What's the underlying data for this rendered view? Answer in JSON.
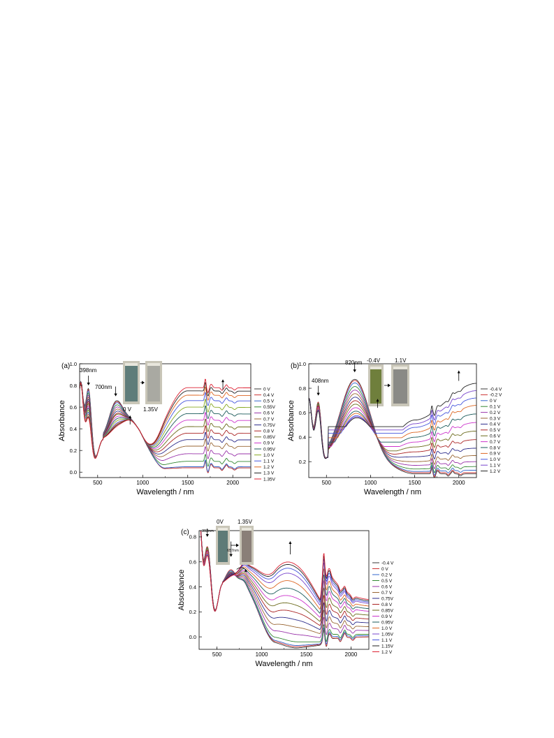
{
  "chart_data": [
    {
      "type": "line",
      "panel_label": "(a)",
      "xlabel": "Wavelength / nm",
      "ylabel": "Absorbance",
      "xlim": [
        300,
        2200
      ],
      "ylim": [
        -0.05,
        1.0
      ],
      "xticks": [
        500,
        1000,
        1500,
        2000
      ],
      "xtick_labels": [
        "500",
        "1000",
        "1500",
        "2000"
      ],
      "yticks": [
        0.0,
        0.2,
        0.4,
        0.6,
        0.8,
        1.0
      ],
      "ytick_labels": [
        "0.0",
        "0.2",
        "0.4",
        "0.6",
        "0.8",
        "1.0"
      ],
      "legend_position": "right",
      "annotations": [
        "398nm",
        "700nm"
      ],
      "photo_labels": [
        "0 V",
        "1.35V"
      ],
      "series": [
        {
          "name": "0  V",
          "color": "#3a3a3a",
          "a398": 0.76,
          "a700": 0.62,
          "a860": 0.47,
          "nir": 0.02,
          "nir_end": 0.0
        },
        {
          "name": "0.4  V",
          "color": "#cc3333",
          "a398": 0.75,
          "a700": 0.61,
          "a860": 0.47,
          "nir": 0.02,
          "nir_end": 0.01
        },
        {
          "name": "0.5  V",
          "color": "#3366cc",
          "a398": 0.74,
          "a700": 0.6,
          "a860": 0.47,
          "nir": 0.03,
          "nir_end": 0.02
        },
        {
          "name": "0.55V",
          "color": "#338833",
          "a398": 0.72,
          "a700": 0.58,
          "a860": 0.47,
          "nir": 0.08,
          "nir_end": 0.06
        },
        {
          "name": "0.6  V",
          "color": "#9933aa",
          "a398": 0.7,
          "a700": 0.56,
          "a860": 0.47,
          "nir": 0.15,
          "nir_end": 0.13
        },
        {
          "name": "0.7  V",
          "color": "#996633",
          "a398": 0.68,
          "a700": 0.54,
          "a860": 0.47,
          "nir": 0.22,
          "nir_end": 0.18
        },
        {
          "name": "0.75V",
          "color": "#2b2b8a",
          "a398": 0.66,
          "a700": 0.52,
          "a860": 0.48,
          "nir": 0.28,
          "nir_end": 0.24
        },
        {
          "name": "0.8  V",
          "color": "#aa2222",
          "a398": 0.64,
          "a700": 0.5,
          "a860": 0.48,
          "nir": 0.34,
          "nir_end": 0.3
        },
        {
          "name": "0.85V",
          "color": "#6a6a1a",
          "a398": 0.62,
          "a700": 0.49,
          "a860": 0.48,
          "nir": 0.4,
          "nir_end": 0.34
        },
        {
          "name": "0.9  V",
          "color": "#cc33cc",
          "a398": 0.6,
          "a700": 0.47,
          "a860": 0.48,
          "nir": 0.46,
          "nir_end": 0.4
        },
        {
          "name": "0.95V",
          "color": "#1a5a5a",
          "a398": 0.58,
          "a700": 0.45,
          "a860": 0.49,
          "nir": 0.52,
          "nir_end": 0.46
        },
        {
          "name": "1.0  V",
          "color": "#88aa22",
          "a398": 0.56,
          "a700": 0.43,
          "a860": 0.49,
          "nir": 0.58,
          "nir_end": 0.52
        },
        {
          "name": "1.1  V",
          "color": "#4455dd",
          "a398": 0.54,
          "a700": 0.41,
          "a860": 0.49,
          "nir": 0.64,
          "nir_end": 0.58
        },
        {
          "name": "1.2  V",
          "color": "#dd6622",
          "a398": 0.52,
          "a700": 0.4,
          "a860": 0.49,
          "nir": 0.69,
          "nir_end": 0.64
        },
        {
          "name": "1.3  V",
          "color": "#222222",
          "a398": 0.5,
          "a700": 0.39,
          "a860": 0.5,
          "nir": 0.73,
          "nir_end": 0.68
        },
        {
          "name": "1.35V",
          "color": "#dd2233",
          "a398": 0.49,
          "a700": 0.38,
          "a860": 0.5,
          "nir": 0.76,
          "nir_end": 0.72
        }
      ]
    },
    {
      "type": "line",
      "panel_label": "(b)",
      "xlabel": "Wavelength / nm",
      "ylabel": "Absorbance",
      "xlim": [
        300,
        2200
      ],
      "ylim": [
        0.07,
        1.0
      ],
      "xticks": [
        500,
        1000,
        1500,
        2000
      ],
      "xtick_labels": [
        "500",
        "1000",
        "1500",
        "2000"
      ],
      "yticks": [
        0.2,
        0.4,
        0.6,
        0.8,
        1.0
      ],
      "ytick_labels": [
        "0.2",
        "0.4",
        "0.6",
        "0.8",
        "1.0"
      ],
      "legend_position": "right",
      "annotations": [
        "408nm",
        "820nm"
      ],
      "photo_labels": [
        "-0.4V",
        "1.1V"
      ],
      "series": [
        {
          "name": "-0.4 V",
          "color": "#3a3a3a",
          "a408": 0.68,
          "a820": 0.87,
          "nir": 0.1,
          "nir_end": 0.1
        },
        {
          "name": "-0.2 V",
          "color": "#cc3333",
          "a408": 0.68,
          "a820": 0.86,
          "nir": 0.11,
          "nir_end": 0.11
        },
        {
          "name": "0  V",
          "color": "#3366cc",
          "a408": 0.67,
          "a820": 0.84,
          "nir": 0.12,
          "nir_end": 0.13
        },
        {
          "name": "0.1 V",
          "color": "#338833",
          "a408": 0.67,
          "a820": 0.81,
          "nir": 0.14,
          "nir_end": 0.16
        },
        {
          "name": "0.2 V",
          "color": "#9933aa",
          "a408": 0.66,
          "a820": 0.78,
          "nir": 0.17,
          "nir_end": 0.2
        },
        {
          "name": "0.3 V",
          "color": "#996633",
          "a408": 0.66,
          "a820": 0.75,
          "nir": 0.2,
          "nir_end": 0.25
        },
        {
          "name": "0.4 V",
          "color": "#2b2b8a",
          "a408": 0.65,
          "a820": 0.72,
          "nir": 0.24,
          "nir_end": 0.31
        },
        {
          "name": "0.5 V",
          "color": "#aa2222",
          "a408": 0.65,
          "a820": 0.69,
          "nir": 0.28,
          "nir_end": 0.38
        },
        {
          "name": "0.6 V",
          "color": "#6a6a1a",
          "a408": 0.64,
          "a820": 0.66,
          "nir": 0.32,
          "nir_end": 0.45
        },
        {
          "name": "0.7 V",
          "color": "#cc33cc",
          "a408": 0.64,
          "a820": 0.63,
          "nir": 0.36,
          "nir_end": 0.52
        },
        {
          "name": "0.8 V",
          "color": "#1a5a5a",
          "a408": 0.63,
          "a820": 0.6,
          "nir": 0.4,
          "nir_end": 0.59
        },
        {
          "name": "0.9 V",
          "color": "#dd6622",
          "a408": 0.63,
          "a820": 0.58,
          "nir": 0.44,
          "nir_end": 0.66
        },
        {
          "name": "1.0 V",
          "color": "#4455dd",
          "a408": 0.62,
          "a820": 0.56,
          "nir": 0.48,
          "nir_end": 0.72
        },
        {
          "name": "1.1 V",
          "color": "#7744cc",
          "a408": 0.62,
          "a820": 0.55,
          "nir": 0.51,
          "nir_end": 0.78
        },
        {
          "name": "1.2 V",
          "color": "#222222",
          "a408": 0.61,
          "a820": 0.54,
          "nir": 0.54,
          "nir_end": 0.84
        }
      ]
    },
    {
      "type": "line",
      "panel_label": "(c)",
      "xlabel": "Wavelength / nm",
      "ylabel": "Absorbance",
      "xlim": [
        300,
        2200
      ],
      "ylim": [
        -0.1,
        0.85
      ],
      "xticks": [
        500,
        1000,
        1500,
        2000
      ],
      "xtick_labels": [
        "500",
        "1000",
        "1500",
        "2000"
      ],
      "yticks": [
        0.0,
        0.2,
        0.4,
        0.6,
        0.8
      ],
      "ytick_labels": [
        "0.0",
        "0.2",
        "0.4",
        "0.6",
        "0.8"
      ],
      "legend_position": "right",
      "annotations": [
        "392nm",
        "657nm"
      ],
      "photo_labels": [
        "0V",
        "1.35V"
      ],
      "series": [
        {
          "name": "-0.4  V",
          "color": "#3a3a3a",
          "a392": 0.72,
          "a657": 0.52,
          "nir": -0.05,
          "nir_end": 0.0
        },
        {
          "name": "0  V",
          "color": "#cc3333",
          "a392": 0.72,
          "a657": 0.52,
          "nir": -0.04,
          "nir_end": 0.0
        },
        {
          "name": "0.2  V",
          "color": "#3366cc",
          "a392": 0.71,
          "a657": 0.51,
          "nir": -0.03,
          "nir_end": 0.01
        },
        {
          "name": "0.5  V",
          "color": "#338833",
          "a392": 0.71,
          "a657": 0.5,
          "nir": 0.0,
          "nir_end": 0.02
        },
        {
          "name": "0.6  V",
          "color": "#9933aa",
          "a392": 0.7,
          "a657": 0.49,
          "nir": 0.06,
          "nir_end": 0.05
        },
        {
          "name": "0.7  V",
          "color": "#996633",
          "a392": 0.7,
          "a657": 0.48,
          "nir": 0.12,
          "nir_end": 0.08
        },
        {
          "name": "0.75V",
          "color": "#2b2b8a",
          "a392": 0.69,
          "a657": 0.47,
          "nir": 0.18,
          "nir_end": 0.11
        },
        {
          "name": "0.8  V",
          "color": "#aa2222",
          "a392": 0.69,
          "a657": 0.46,
          "nir": 0.24,
          "nir_end": 0.14
        },
        {
          "name": "0.85V",
          "color": "#6a6a1a",
          "a392": 0.68,
          "a657": 0.45,
          "nir": 0.3,
          "nir_end": 0.17
        },
        {
          "name": "0.9  V",
          "color": "#cc33cc",
          "a392": 0.68,
          "a657": 0.44,
          "nir": 0.36,
          "nir_end": 0.2
        },
        {
          "name": "0.95V",
          "color": "#1a5a5a",
          "a392": 0.67,
          "a657": 0.44,
          "nir": 0.42,
          "nir_end": 0.22
        },
        {
          "name": "1.0  V",
          "color": "#dd6622",
          "a392": 0.67,
          "a657": 0.43,
          "nir": 0.48,
          "nir_end": 0.24
        },
        {
          "name": "1.05V",
          "color": "#7744cc",
          "a392": 0.66,
          "a657": 0.43,
          "nir": 0.54,
          "nir_end": 0.26
        },
        {
          "name": "1.1  V",
          "color": "#4455dd",
          "a392": 0.66,
          "a657": 0.42,
          "nir": 0.58,
          "nir_end": 0.27
        },
        {
          "name": "1.15V",
          "color": "#222222",
          "a392": 0.65,
          "a657": 0.42,
          "nir": 0.61,
          "nir_end": 0.28
        },
        {
          "name": "1.2  V",
          "color": "#dd2233",
          "a392": 0.65,
          "a657": 0.41,
          "nir": 0.63,
          "nir_end": 0.29
        }
      ]
    }
  ]
}
